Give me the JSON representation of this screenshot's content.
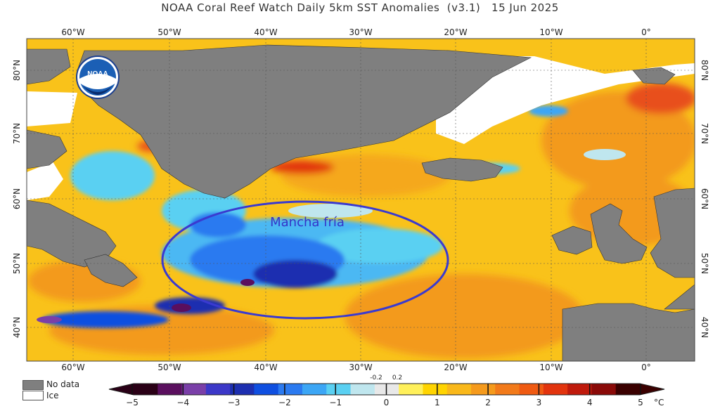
{
  "title": "NOAA Coral Reef Watch Daily 5km SST Anomalies  (v3.1)   15 Jun 2025",
  "logo_text": "NOAA",
  "annotation": "Mancha fría",
  "lon_labels": [
    "60°W",
    "50°W",
    "40°W",
    "30°W",
    "20°W",
    "10°W",
    "0°"
  ],
  "lat_labels": [
    "80°N",
    "70°N",
    "60°N",
    "50°N",
    "40°N"
  ],
  "legend": {
    "no_data": "No data",
    "ice": "Ice",
    "no_data_color": "#7f7f7f",
    "ice_color": "#ffffff"
  },
  "colorbar": {
    "ticks": [
      "−5",
      "−4",
      "−3",
      "−2",
      "−1",
      "0",
      "1",
      "2",
      "3",
      "4",
      "5"
    ],
    "small_labels": [
      "-0.2",
      "0.2"
    ],
    "unit": "°C",
    "colors": [
      "#2a0016",
      "#5a0f5e",
      "#7a3fa8",
      "#3c38c8",
      "#1d2fb0",
      "#0f4fe0",
      "#2b7af0",
      "#3ca6f5",
      "#5ad0f2",
      "#bfe6ee",
      "#e8e8e8",
      "#fff05a",
      "#ffd400",
      "#f9b81a",
      "#f59a1c",
      "#f27a1a",
      "#ef5a12",
      "#e2340e",
      "#bf1a0c",
      "#8a0a08",
      "#3a0000"
    ]
  }
}
